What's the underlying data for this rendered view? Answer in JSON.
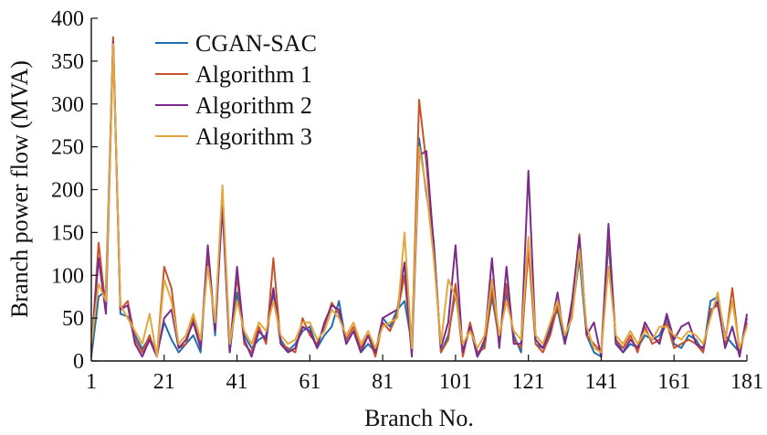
{
  "chart_data": {
    "type": "line",
    "xlabel": "Branch No.",
    "ylabel": "Branch power flow (MVA)",
    "xlim": [
      1,
      181
    ],
    "ylim": [
      0,
      400
    ],
    "xticks": [
      1,
      21,
      41,
      61,
      81,
      101,
      121,
      141,
      161,
      181
    ],
    "yticks": [
      0,
      50,
      100,
      150,
      200,
      250,
      300,
      350,
      400
    ],
    "grid": false,
    "legend_position": "top-left",
    "x": [
      1,
      3,
      5,
      7,
      9,
      11,
      13,
      15,
      17,
      19,
      21,
      23,
      25,
      27,
      29,
      31,
      33,
      35,
      37,
      39,
      41,
      43,
      45,
      47,
      49,
      51,
      53,
      55,
      57,
      59,
      61,
      63,
      65,
      67,
      69,
      71,
      73,
      75,
      77,
      79,
      81,
      83,
      85,
      87,
      89,
      91,
      93,
      95,
      97,
      99,
      101,
      103,
      105,
      107,
      109,
      111,
      113,
      115,
      117,
      119,
      121,
      123,
      125,
      127,
      129,
      131,
      133,
      135,
      137,
      139,
      141,
      143,
      145,
      147,
      149,
      151,
      153,
      155,
      157,
      159,
      161,
      163,
      165,
      167,
      169,
      171,
      173,
      175,
      177,
      179,
      181
    ],
    "series": [
      {
        "name": "CGAN-SAC",
        "color": "#1f6fb0",
        "values": [
          5,
          75,
          82,
          375,
          55,
          52,
          30,
          14,
          28,
          8,
          45,
          25,
          10,
          20,
          30,
          10,
          128,
          30,
          190,
          10,
          80,
          30,
          15,
          25,
          30,
          80,
          25,
          12,
          20,
          35,
          40,
          15,
          30,
          40,
          70,
          20,
          35,
          10,
          20,
          10,
          50,
          40,
          60,
          70,
          20,
          260,
          195,
          140,
          10,
          30,
          80,
          10,
          40,
          5,
          20,
          75,
          25,
          80,
          30,
          10,
          140,
          20,
          15,
          40,
          60,
          20,
          55,
          120,
          30,
          10,
          5,
          140,
          25,
          10,
          20,
          15,
          30,
          25,
          30,
          50,
          20,
          15,
          30,
          25,
          10,
          70,
          75,
          30,
          20,
          10,
          50
        ]
      },
      {
        "name": "Algorithm 1",
        "color": "#c8522a",
        "values": [
          10,
          138,
          60,
          378,
          60,
          70,
          25,
          10,
          30,
          5,
          110,
          85,
          15,
          20,
          50,
          20,
          120,
          40,
          200,
          15,
          100,
          20,
          10,
          40,
          20,
          120,
          20,
          15,
          10,
          50,
          30,
          20,
          40,
          68,
          55,
          25,
          40,
          15,
          30,
          5,
          45,
          35,
          55,
          100,
          10,
          305,
          230,
          135,
          10,
          25,
          90,
          5,
          45,
          10,
          15,
          85,
          20,
          90,
          25,
          15,
          130,
          20,
          10,
          30,
          65,
          25,
          60,
          148,
          30,
          20,
          10,
          150,
          25,
          15,
          30,
          10,
          40,
          20,
          25,
          45,
          15,
          20,
          25,
          20,
          10,
          60,
          65,
          20,
          85,
          10,
          45
        ]
      },
      {
        "name": "Algorithm 2",
        "color": "#7b2b8c",
        "values": [
          15,
          120,
          55,
          372,
          60,
          65,
          20,
          5,
          25,
          5,
          50,
          60,
          15,
          25,
          45,
          15,
          135,
          35,
          180,
          10,
          110,
          25,
          5,
          35,
          25,
          85,
          20,
          10,
          15,
          40,
          35,
          15,
          45,
          65,
          60,
          20,
          35,
          10,
          30,
          10,
          50,
          55,
          60,
          115,
          5,
          240,
          245,
          135,
          15,
          45,
          135,
          10,
          40,
          5,
          25,
          120,
          15,
          110,
          20,
          20,
          222,
          25,
          15,
          35,
          80,
          20,
          70,
          145,
          30,
          45,
          5,
          160,
          20,
          10,
          25,
          15,
          45,
          30,
          20,
          55,
          25,
          40,
          45,
          20,
          15,
          55,
          70,
          15,
          40,
          5,
          55
        ]
      },
      {
        "name": "Algorithm 3",
        "color": "#e2a83c",
        "values": [
          20,
          90,
          70,
          370,
          65,
          50,
          35,
          20,
          55,
          5,
          95,
          70,
          20,
          30,
          55,
          25,
          110,
          45,
          205,
          20,
          70,
          35,
          20,
          45,
          35,
          70,
          30,
          20,
          25,
          45,
          45,
          25,
          35,
          60,
          50,
          30,
          45,
          20,
          35,
          15,
          40,
          45,
          50,
          150,
          15,
          250,
          200,
          120,
          20,
          95,
          75,
          20,
          35,
          15,
          30,
          95,
          30,
          70,
          35,
          25,
          145,
          30,
          20,
          45,
          70,
          30,
          50,
          130,
          40,
          15,
          10,
          110,
          30,
          20,
          35,
          20,
          35,
          25,
          40,
          40,
          30,
          25,
          35,
          30,
          20,
          50,
          80,
          25,
          70,
          15,
          40
        ]
      }
    ]
  }
}
